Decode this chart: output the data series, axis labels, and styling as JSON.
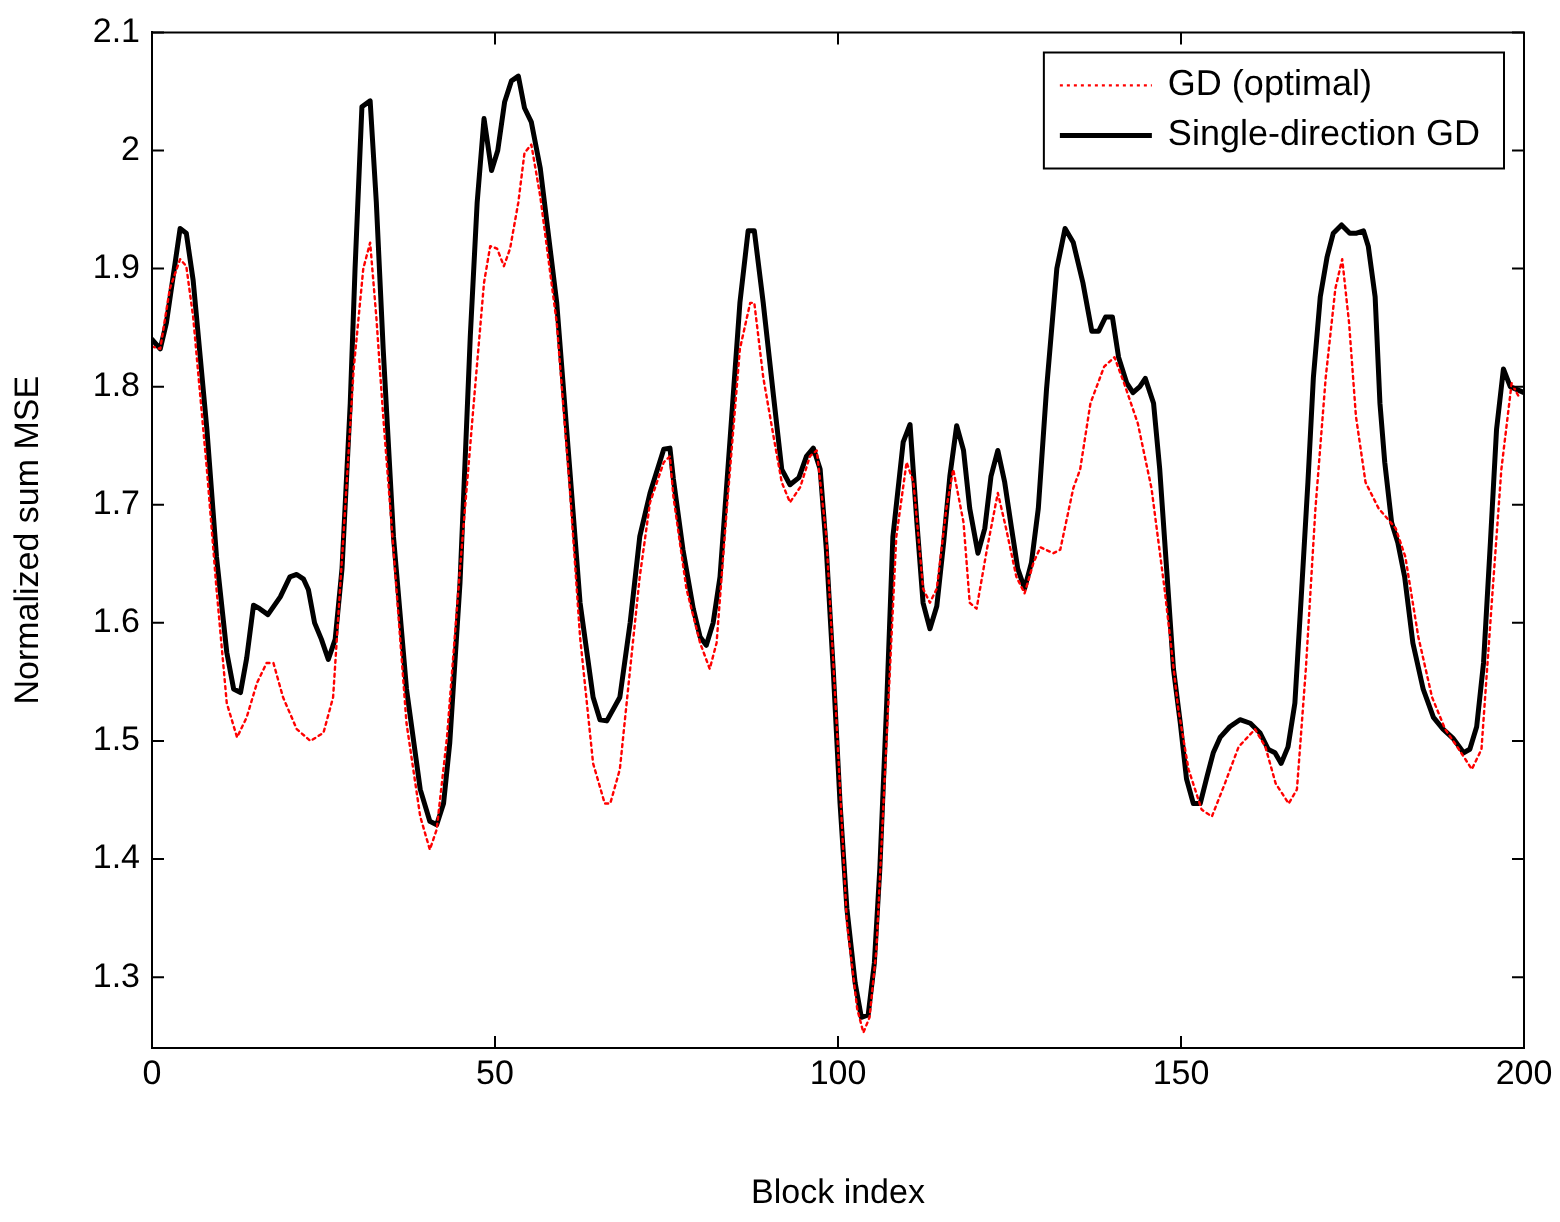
{
  "chart_data": {
    "type": "line",
    "xlabel": "Block index",
    "ylabel": "Normalized sum MSE",
    "xlim": [
      0,
      200
    ],
    "xticks": [
      0,
      50,
      100,
      150,
      200
    ],
    "ylim": [
      1.24,
      2.1
    ],
    "yticks": [
      1.3,
      1.4,
      1.5,
      1.6,
      1.7,
      1.8,
      1.9,
      2,
      2.1
    ],
    "grid": false,
    "legend": "top right",
    "series": [
      {
        "name": "GD (optimal)",
        "color": "#ff0000",
        "line_style": "dotted",
        "x": [
          0,
          1.2,
          2.6,
          4.1,
          5,
          6,
          8,
          9.4,
          10.9,
          12.4,
          13.8,
          15.3,
          16.7,
          17.7,
          19.1,
          21.1,
          23.1,
          25,
          26.4,
          27.9,
          29.4,
          30.8,
          31.8,
          32.7,
          33.7,
          35.2,
          37.1,
          39.1,
          40.5,
          41.5,
          43,
          44.9,
          46.9,
          48.4,
          49.3,
          50.3,
          51.3,
          52.2,
          53.4,
          54.3,
          55.3,
          56.6,
          59,
          60.9,
          62.4,
          64.3,
          66,
          66.8,
          68.2,
          69.7,
          71.1,
          72.6,
          74.6,
          75.5,
          76,
          77.9,
          79.9,
          81.3,
          82.3,
          83.8,
          85.7,
          87.2,
          87.8,
          89.1,
          90.6,
          91.8,
          93,
          94.5,
          95.9,
          96.9,
          98.3,
          99.8,
          101.3,
          102.8,
          103.7,
          104.6,
          105.6,
          107.1,
          108.5,
          110,
          111,
          112.4,
          113.4,
          114.4,
          115.8,
          116.8,
          118.3,
          119.2,
          120.2,
          121.7,
          123.3,
          124.5,
          126,
          127.2,
          128.5,
          129.5,
          131.4,
          132.4,
          134.3,
          135.3,
          136.8,
          138.8,
          140.3,
          141.7,
          143.7,
          145.7,
          147.6,
          149.6,
          151.1,
          153,
          154.5,
          156.4,
          158.4,
          160.8,
          162.3,
          163.8,
          165.7,
          166.9,
          168.2,
          169.6,
          171.1,
          172.5,
          173.5,
          174.5,
          175.5,
          176.9,
          178.8,
          181.3,
          182.7,
          184.6,
          186.6,
          188.5,
          190.5,
          192.4,
          193.8,
          195.3,
          196.7,
          198.2,
          199.2
        ],
        "values": [
          1.834,
          1.832,
          1.883,
          1.908,
          1.902,
          1.859,
          1.73,
          1.629,
          1.532,
          1.503,
          1.52,
          1.549,
          1.566,
          1.566,
          1.537,
          1.51,
          1.5,
          1.507,
          1.537,
          1.673,
          1.815,
          1.9,
          1.922,
          1.859,
          1.775,
          1.662,
          1.515,
          1.436,
          1.408,
          1.425,
          1.503,
          1.646,
          1.786,
          1.888,
          1.919,
          1.917,
          1.902,
          1.917,
          1.956,
          1.998,
          2.005,
          1.961,
          1.854,
          1.714,
          1.588,
          1.481,
          1.447,
          1.447,
          1.476,
          1.561,
          1.639,
          1.702,
          1.736,
          1.741,
          1.707,
          1.629,
          1.583,
          1.561,
          1.583,
          1.697,
          1.832,
          1.871,
          1.871,
          1.808,
          1.758,
          1.719,
          1.702,
          1.715,
          1.741,
          1.746,
          1.673,
          1.515,
          1.346,
          1.273,
          1.253,
          1.266,
          1.323,
          1.503,
          1.673,
          1.736,
          1.719,
          1.629,
          1.617,
          1.629,
          1.697,
          1.73,
          1.685,
          1.617,
          1.612,
          1.662,
          1.71,
          1.68,
          1.639,
          1.625,
          1.651,
          1.664,
          1.659,
          1.662,
          1.714,
          1.73,
          1.786,
          1.817,
          1.825,
          1.803,
          1.769,
          1.714,
          1.629,
          1.527,
          1.476,
          1.442,
          1.436,
          1.464,
          1.495,
          1.51,
          1.495,
          1.464,
          1.447,
          1.459,
          1.561,
          1.697,
          1.808,
          1.883,
          1.908,
          1.854,
          1.775,
          1.719,
          1.697,
          1.68,
          1.656,
          1.588,
          1.537,
          1.51,
          1.493,
          1.476,
          1.493,
          1.617,
          1.73,
          1.803,
          1.792
        ]
      },
      {
        "name": "Single-direction GD",
        "color": "#000000",
        "line_style": "solid",
        "x": [
          0,
          1.2,
          2.1,
          4.1,
          5,
          6,
          8,
          9.4,
          10.9,
          11.9,
          12.9,
          13.8,
          14.8,
          15.7,
          16.9,
          18.7,
          20.1,
          21.1,
          22.1,
          22.8,
          23.7,
          24.7,
          25.7,
          26.7,
          27.7,
          28.9,
          29.6,
          30.6,
          31.8,
          32.7,
          33.7,
          35.2,
          37.1,
          39.1,
          40.5,
          41.5,
          42.5,
          43.4,
          44.9,
          46.4,
          47.4,
          48.4,
          49.5,
          50.4,
          51.4,
          52.4,
          53.4,
          54.3,
          55.3,
          56.6,
          59,
          60.9,
          62.4,
          64.3,
          65.3,
          66.3,
          68.2,
          69.7,
          71.1,
          72.6,
          74.6,
          75.5,
          76,
          77.4,
          78.9,
          79.9,
          80.8,
          81.8,
          82.8,
          84.3,
          85.7,
          86.9,
          87.8,
          89.1,
          90.6,
          91.8,
          93,
          94.3,
          95.4,
          96.4,
          97.4,
          98.3,
          99.3,
          100.3,
          101.3,
          102.5,
          103.4,
          104.4,
          105.3,
          106.1,
          107.1,
          108,
          109.5,
          110.5,
          111.5,
          112.4,
          113.4,
          114.4,
          115.4,
          116.3,
          117.3,
          118.3,
          119.2,
          120.4,
          121.4,
          122.3,
          123.3,
          124.3,
          125.3,
          126.2,
          127.2,
          128.2,
          129.2,
          130.4,
          131.9,
          133.1,
          134.3,
          135.7,
          137,
          138,
          139,
          140,
          140.9,
          142.1,
          143,
          144,
          144.8,
          146,
          146.9,
          147.9,
          148.9,
          149.9,
          150.8,
          151.8,
          152.8,
          153.8,
          154.7,
          155.7,
          157.1,
          158.6,
          160.1,
          161.5,
          162.7,
          163.7,
          164.6,
          165.6,
          166.6,
          167.6,
          168.5,
          169.3,
          170.3,
          171.3,
          172.2,
          173.4,
          174.6,
          175.6,
          176.6,
          177.3,
          178.3,
          179,
          179.7,
          180.7,
          181.6,
          182.6,
          183.8,
          185.3,
          186.8,
          188.2,
          189.7,
          191.2,
          192.1,
          193.1,
          194.1,
          195.1,
          196,
          197,
          198,
          200
        ],
        "values": [
          1.84,
          1.832,
          1.854,
          1.934,
          1.93,
          1.89,
          1.764,
          1.656,
          1.575,
          1.544,
          1.541,
          1.57,
          1.615,
          1.612,
          1.607,
          1.622,
          1.639,
          1.641,
          1.637,
          1.628,
          1.6,
          1.586,
          1.569,
          1.586,
          1.646,
          1.786,
          1.9,
          2.037,
          2.042,
          1.956,
          1.832,
          1.673,
          1.544,
          1.459,
          1.432,
          1.429,
          1.447,
          1.498,
          1.634,
          1.843,
          1.956,
          2.027,
          1.983,
          2,
          2.041,
          2.059,
          2.063,
          2.036,
          2.024,
          1.985,
          1.871,
          1.73,
          1.617,
          1.537,
          1.518,
          1.517,
          1.537,
          1.6,
          1.673,
          1.71,
          1.747,
          1.748,
          1.722,
          1.662,
          1.612,
          1.588,
          1.581,
          1.6,
          1.639,
          1.758,
          1.871,
          1.932,
          1.932,
          1.871,
          1.792,
          1.73,
          1.717,
          1.723,
          1.741,
          1.748,
          1.73,
          1.662,
          1.561,
          1.447,
          1.358,
          1.295,
          1.266,
          1.268,
          1.312,
          1.392,
          1.532,
          1.673,
          1.753,
          1.768,
          1.685,
          1.617,
          1.595,
          1.614,
          1.668,
          1.724,
          1.767,
          1.746,
          1.697,
          1.659,
          1.68,
          1.724,
          1.746,
          1.719,
          1.68,
          1.646,
          1.629,
          1.651,
          1.697,
          1.798,
          1.9,
          1.934,
          1.922,
          1.888,
          1.847,
          1.847,
          1.859,
          1.859,
          1.825,
          1.803,
          1.795,
          1.8,
          1.807,
          1.786,
          1.73,
          1.646,
          1.561,
          1.515,
          1.468,
          1.447,
          1.447,
          1.47,
          1.49,
          1.503,
          1.512,
          1.518,
          1.515,
          1.507,
          1.493,
          1.49,
          1.481,
          1.495,
          1.532,
          1.629,
          1.719,
          1.808,
          1.876,
          1.91,
          1.93,
          1.937,
          1.93,
          1.93,
          1.932,
          1.919,
          1.876,
          1.786,
          1.736,
          1.685,
          1.668,
          1.639,
          1.583,
          1.544,
          1.52,
          1.51,
          1.502,
          1.49,
          1.493,
          1.512,
          1.566,
          1.668,
          1.764,
          1.815,
          1.8,
          1.795
        ]
      }
    ]
  }
}
